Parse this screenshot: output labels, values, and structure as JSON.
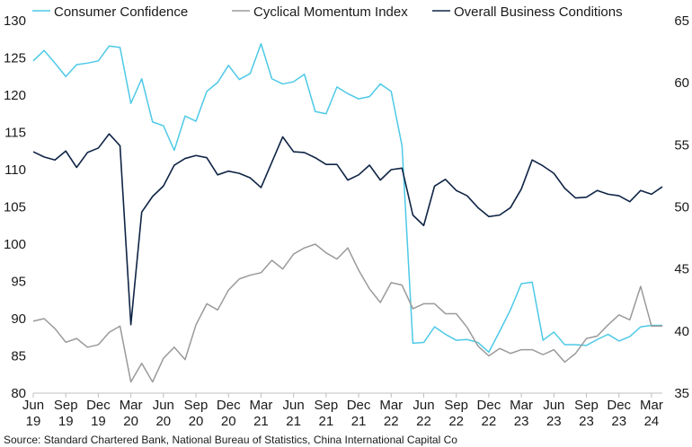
{
  "chart_data": {
    "type": "line",
    "source": "Source: Standard Chartered Bank, National Bureau of Statistics, China International Capital Co",
    "x": [
      "Jun 19",
      "Jul 19",
      "Aug 19",
      "Sep 19",
      "Oct 19",
      "Nov 19",
      "Dec 19",
      "Jan 20",
      "Feb 20",
      "Mar 20",
      "Apr 20",
      "May 20",
      "Jun 20",
      "Jul 20",
      "Aug 20",
      "Sep 20",
      "Oct 20",
      "Nov 20",
      "Dec 20",
      "Jan 21",
      "Feb 21",
      "Mar 21",
      "Apr 21",
      "May 21",
      "Jun 21",
      "Jul 21",
      "Aug 21",
      "Sep 21",
      "Oct 21",
      "Nov 21",
      "Dec 21",
      "Jan 22",
      "Feb 22",
      "Mar 22",
      "Apr 22",
      "May 22",
      "Jun 22",
      "Jul 22",
      "Aug 22",
      "Sep 22",
      "Oct 22",
      "Nov 22",
      "Dec 22",
      "Jan 23",
      "Feb 23",
      "Mar 23",
      "Apr 23",
      "May 23",
      "Jun 23",
      "Jul 23",
      "Aug 23",
      "Sep 23",
      "Oct 23",
      "Nov 23",
      "Dec 23",
      "Jan 24",
      "Feb 24",
      "Mar 24",
      "Apr 24"
    ],
    "x_tick_labels": [
      {
        "month": "Jun",
        "year": "19",
        "index": 0
      },
      {
        "month": "Sep",
        "year": "19",
        "index": 3
      },
      {
        "month": "Dec",
        "year": "19",
        "index": 6
      },
      {
        "month": "Mar",
        "year": "20",
        "index": 9
      },
      {
        "month": "Jun",
        "year": "20",
        "index": 12
      },
      {
        "month": "Sep",
        "year": "20",
        "index": 15
      },
      {
        "month": "Dec",
        "year": "20",
        "index": 18
      },
      {
        "month": "Mar",
        "year": "21",
        "index": 21
      },
      {
        "month": "Jun",
        "year": "21",
        "index": 24
      },
      {
        "month": "Sep",
        "year": "21",
        "index": 27
      },
      {
        "month": "Dec",
        "year": "21",
        "index": 30
      },
      {
        "month": "Mar",
        "year": "22",
        "index": 33
      },
      {
        "month": "Jun",
        "year": "22",
        "index": 36
      },
      {
        "month": "Sep",
        "year": "22",
        "index": 39
      },
      {
        "month": "Dec",
        "year": "22",
        "index": 42
      },
      {
        "month": "Mar",
        "year": "23",
        "index": 45
      },
      {
        "month": "Jun",
        "year": "23",
        "index": 48
      },
      {
        "month": "Sep",
        "year": "23",
        "index": 51
      },
      {
        "month": "Dec",
        "year": "23",
        "index": 54
      },
      {
        "month": "Mar",
        "year": "24",
        "index": 57
      }
    ],
    "y_left": {
      "min": 80,
      "max": 130,
      "ticks": [
        80,
        85,
        90,
        95,
        100,
        105,
        110,
        115,
        120,
        125,
        130
      ]
    },
    "y_right": {
      "min": 35,
      "max": 65,
      "ticks": [
        35,
        40,
        45,
        50,
        55,
        60,
        65
      ]
    },
    "grid": false,
    "legend_position": "top",
    "series": [
      {
        "name": "Consumer Confidence",
        "axis": "left",
        "color": "#4dc9e6",
        "values": [
          124.6,
          126.0,
          124.3,
          122.5,
          124.1,
          124.3,
          124.6,
          126.6,
          126.4,
          118.9,
          122.2,
          116.4,
          115.9,
          112.6,
          117.2,
          116.5,
          120.5,
          121.7,
          124.0,
          122.1,
          122.9,
          126.9,
          122.2,
          121.5,
          121.8,
          122.8,
          117.8,
          117.5,
          121.1,
          120.2,
          119.5,
          119.8,
          121.5,
          120.5,
          113.2,
          86.7,
          86.8,
          88.9,
          87.9,
          87.1,
          87.2,
          86.8,
          85.5,
          88.3,
          91.2,
          94.7,
          94.9,
          87.1,
          88.2,
          86.5,
          86.5,
          86.4,
          87.2,
          87.9,
          87.0,
          87.6,
          88.9,
          89.1,
          89.1
        ]
      },
      {
        "name": "Cyclical Momentum Index",
        "axis": "right",
        "color": "#9a9a9a",
        "values": [
          40.8,
          41.0,
          40.2,
          39.1,
          39.4,
          38.7,
          38.9,
          39.9,
          40.4,
          35.9,
          37.4,
          35.9,
          37.8,
          38.7,
          37.7,
          40.5,
          42.2,
          41.7,
          43.3,
          44.2,
          44.5,
          44.7,
          45.7,
          45.0,
          46.2,
          46.7,
          47.0,
          46.3,
          45.8,
          46.7,
          44.9,
          43.4,
          42.3,
          43.9,
          43.7,
          41.8,
          42.2,
          42.2,
          41.4,
          41.4,
          40.3,
          38.8,
          38.0,
          38.6,
          38.2,
          38.5,
          38.5,
          38.1,
          38.5,
          37.5,
          38.2,
          39.4,
          39.6,
          40.5,
          41.3,
          40.9,
          43.6,
          40.4,
          40.4
        ]
      },
      {
        "name": "Overall Business Conditions",
        "axis": "left",
        "color": "#0f2445",
        "values": [
          112.4,
          111.7,
          111.3,
          112.5,
          110.3,
          112.3,
          112.9,
          114.8,
          113.2,
          89.2,
          104.3,
          106.4,
          107.8,
          110.6,
          111.5,
          111.9,
          111.6,
          109.3,
          109.8,
          109.5,
          108.9,
          107.6,
          111.0,
          114.4,
          112.4,
          112.3,
          111.6,
          110.7,
          110.7,
          108.6,
          109.3,
          110.6,
          108.6,
          110.0,
          110.2,
          103.9,
          102.5,
          107.8,
          108.7,
          107.2,
          106.5,
          104.9,
          103.7,
          103.9,
          104.9,
          107.4,
          111.3,
          110.5,
          109.5,
          107.5,
          106.2,
          106.3,
          107.2,
          106.7,
          106.5,
          105.7,
          107.2,
          106.7,
          107.7
        ]
      }
    ]
  }
}
